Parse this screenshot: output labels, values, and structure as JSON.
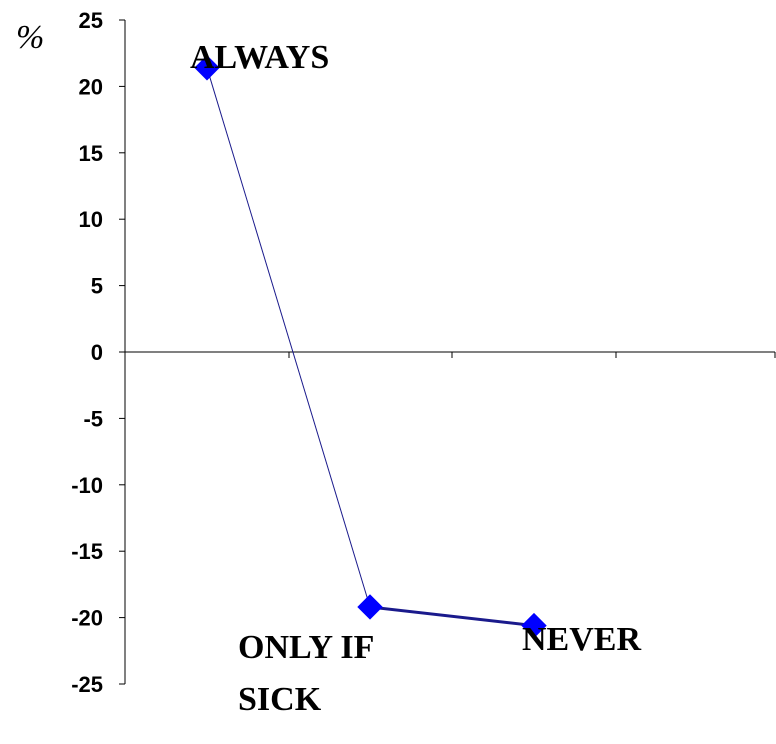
{
  "chart_data": {
    "type": "line",
    "ylabel": "%",
    "ylim": [
      -25,
      25
    ],
    "yticks": [
      "25",
      "20",
      "15",
      "10",
      "5",
      "0",
      "-5",
      "-10",
      "-15",
      "-20",
      "-25"
    ],
    "categories": [
      "ALWAYS",
      "ONLY IF SICK",
      "NEVER"
    ],
    "category_label_lines": [
      [
        "ALWAYS"
      ],
      [
        "ONLY  IF",
        "SICK"
      ],
      [
        "NEVER"
      ]
    ],
    "values": [
      21.4,
      -19.2,
      -20.6
    ],
    "colors": {
      "line": "#1a1a8c",
      "marker": "#0000ff"
    }
  }
}
